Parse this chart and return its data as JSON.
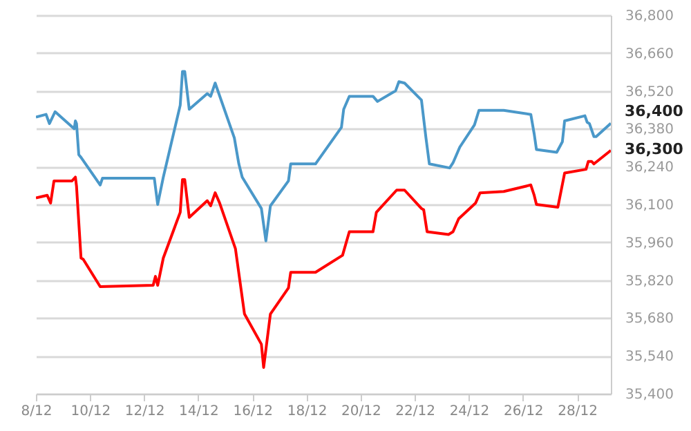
{
  "chart_data": {
    "type": "line",
    "xlim": [
      "--12-08",
      "--12-29T06:00"
    ],
    "xticks": [
      {
        "value": "--12-08",
        "label": "8/12"
      },
      {
        "value": "--12-10",
        "label": "10/12"
      },
      {
        "value": "--12-12",
        "label": "12/12"
      },
      {
        "value": "--12-14",
        "label": "14/12"
      },
      {
        "value": "--12-16",
        "label": "16/12"
      },
      {
        "value": "--12-18",
        "label": "18/12"
      },
      {
        "value": "--12-20",
        "label": "20/12"
      },
      {
        "value": "--12-22",
        "label": "22/12"
      },
      {
        "value": "--12-24",
        "label": "24/12"
      },
      {
        "value": "--12-26",
        "label": "26/12"
      },
      {
        "value": "--12-28",
        "label": "28/12"
      }
    ],
    "ylim": [
      35400,
      36800
    ],
    "yticks": [
      {
        "value": 35400,
        "label": "35,400"
      },
      {
        "value": 35540,
        "label": "35,540"
      },
      {
        "value": 35680,
        "label": "35,680"
      },
      {
        "value": 35820,
        "label": "35,820"
      },
      {
        "value": 35960,
        "label": "35,960"
      },
      {
        "value": 36100,
        "label": "36,100"
      },
      {
        "value": 36240,
        "label": "36,240"
      },
      {
        "value": 36380,
        "label": "36,380"
      },
      {
        "value": 36520,
        "label": "36,520"
      },
      {
        "value": 36660,
        "label": "36,660"
      },
      {
        "value": 36800,
        "label": "36,800"
      }
    ],
    "grid": "y",
    "series": [
      {
        "color": "#4a98c9",
        "x": [
          "--12-08T00:00",
          "--12-08T09:00",
          "--12-08T12:00",
          "--12-08T17:00",
          "--12-09T10:00",
          "--12-09T11:00",
          "--12-09T12:00",
          "--12-09T14:00",
          "--12-09T16:00",
          "--12-10T09:00",
          "--12-10T11:00",
          "--12-12T09:00",
          "--12-12T12:00",
          "--12-12T17:00",
          "--12-13T08:00",
          "--12-13T10:00",
          "--12-13T12:00",
          "--12-13T16:00",
          "--12-14T08:00",
          "--12-14T11:00",
          "--12-14T15:00",
          "--12-15T08:00",
          "--12-15T12:00",
          "--12-15T15:00",
          "--12-16T08:00",
          "--12-16T12:00",
          "--12-16T16:00",
          "--12-17T08:00",
          "--12-17T10:00",
          "--12-18T08:00",
          "--12-19T07:00",
          "--12-19T09:00",
          "--12-19T14:00",
          "--12-20T11:00",
          "--12-20T15:00",
          "--12-21T07:00",
          "--12-21T10:00",
          "--12-21T15:00",
          "--12-22T06:00",
          "--12-22T10:00",
          "--12-22T13:00",
          "--12-23T07:00",
          "--12-23T10:00",
          "--12-23T16:00",
          "--12-24T05:00",
          "--12-24T09:00",
          "--12-25T07:00",
          "--12-26T07:00",
          "--12-26T10:00",
          "--12-26T12:00",
          "--12-27T06:00",
          "--12-27T11:00",
          "--12-27T13:00",
          "--12-28T07:00",
          "--12-28T09:00",
          "--12-28T11:00",
          "--12-28T15:00",
          "--12-28T17:00",
          "--12-29T06:00"
        ],
        "values": [
          36423,
          36433,
          36399,
          36443,
          36380,
          36409,
          36399,
          36284,
          36274,
          36172,
          36197,
          36197,
          36100,
          36201,
          36467,
          36592,
          36592,
          36452,
          36510,
          36500,
          36549,
          36346,
          36250,
          36201,
          36085,
          35965,
          36095,
          36187,
          36250,
          36250,
          36385,
          36452,
          36500,
          36500,
          36481,
          36520,
          36554,
          36549,
          36486,
          36346,
          36250,
          36235,
          36254,
          36312,
          36394,
          36448,
          36448,
          36433,
          36361,
          36303,
          36293,
          36332,
          36409,
          36428,
          36404,
          36399,
          36351,
          36351,
          36400
        ]
      },
      {
        "color": "#ff0000",
        "x": [
          "--12-08T00:00",
          "--12-08T10:00",
          "--12-08T13:00",
          "--12-08T16:00",
          "--12-09T08:00",
          "--12-09T11:00",
          "--12-09T12:00",
          "--12-09T16:00",
          "--12-09T18:00",
          "--12-10T09:00",
          "--12-12T08:00",
          "--12-12T10:00",
          "--12-12T12:00",
          "--12-12T17:00",
          "--12-13T08:00",
          "--12-13T10:00",
          "--12-13T12:00",
          "--12-13T16:00",
          "--12-14T08:00",
          "--12-14T11:00",
          "--12-14T15:00",
          "--12-14T19:00",
          "--12-15T09:00",
          "--12-15T17:00",
          "--12-16T08:00",
          "--12-16T10:00",
          "--12-16T16:00",
          "--12-17T08:00",
          "--12-17T10:00",
          "--12-18T08:00",
          "--12-19T08:00",
          "--12-19T14:00",
          "--12-20T11:00",
          "--12-20T14:00",
          "--12-21T08:00",
          "--12-21T15:00",
          "--12-22T06:00",
          "--12-22T08:00",
          "--12-22T11:00",
          "--12-23T06:00",
          "--12-23T10:00",
          "--12-23T15:00",
          "--12-24T06:00",
          "--12-24T10:00",
          "--12-25T07:00",
          "--12-26T07:00",
          "--12-26T10:00",
          "--12-26T12:00",
          "--12-27T07:00",
          "--12-27T13:00",
          "--12-28T08:00",
          "--12-28T10:00",
          "--12-28T13:00",
          "--12-28T15:00",
          "--12-29T06:00"
        ],
        "values": [
          36124,
          36134,
          36105,
          36187,
          36187,
          36201,
          36168,
          35902,
          35897,
          35796,
          35801,
          35834,
          35801,
          35902,
          36071,
          36192,
          36192,
          36052,
          36114,
          36095,
          36143,
          36105,
          35936,
          35695,
          35583,
          35497,
          35695,
          35791,
          35849,
          35849,
          35912,
          35999,
          35999,
          36071,
          36153,
          36153,
          36085,
          36080,
          35999,
          35989,
          35999,
          36047,
          36105,
          36143,
          36148,
          36172,
          36134,
          36100,
          36090,
          36216,
          36230,
          36259,
          36259,
          36250,
          36300
        ]
      }
    ],
    "annotations": [
      {
        "text": "36,400",
        "x": "--12-29T06:00",
        "y": 36400
      },
      {
        "text": "36,300",
        "x": "--12-29T06:00",
        "y": 36300
      }
    ]
  }
}
